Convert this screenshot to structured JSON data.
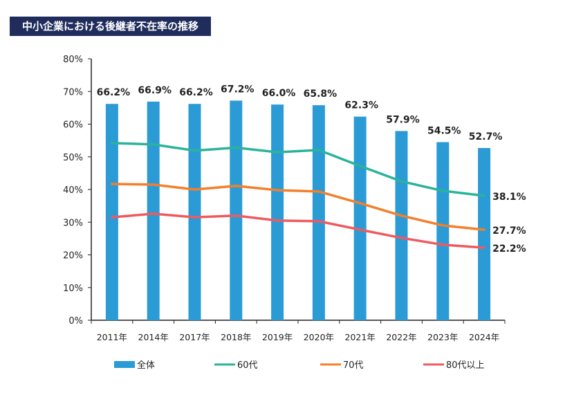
{
  "title": "中小企業における後継者不在率の推移",
  "chart_data": {
    "type": "bar",
    "title": "中小企業における後継者不在率の推移",
    "categories": [
      "2011年",
      "2014年",
      "2017年",
      "2018年",
      "2019年",
      "2020年",
      "2021年",
      "2022年",
      "2023年",
      "2024年"
    ],
    "ylim": [
      0,
      80
    ],
    "yticks": [
      "0%",
      "10%",
      "20%",
      "30%",
      "40%",
      "50%",
      "60%",
      "70%",
      "80%"
    ],
    "grid": false,
    "legend_position": "bottom",
    "series": [
      {
        "name": "全体",
        "kind": "bar",
        "color": "#2b9bd6",
        "values": [
          66.2,
          66.9,
          66.2,
          67.2,
          66.0,
          65.8,
          62.3,
          57.9,
          54.5,
          52.7
        ],
        "labels": [
          "66.2%",
          "66.9%",
          "66.2%",
          "67.2%",
          "66.0%",
          "65.8%",
          "62.3%",
          "57.9%",
          "54.5%",
          "52.7%"
        ]
      },
      {
        "name": "60代",
        "kind": "line",
        "color": "#2bb39a",
        "values": [
          54.2,
          53.8,
          51.9,
          52.8,
          51.4,
          52.1,
          47.2,
          42.5,
          39.6,
          38.1
        ],
        "end_label": "38.1%"
      },
      {
        "name": "70代",
        "kind": "line",
        "color": "#f47f2a",
        "values": [
          41.7,
          41.5,
          40.0,
          41.1,
          39.8,
          39.4,
          35.8,
          32.0,
          29.0,
          27.7
        ],
        "end_label": "27.7%"
      },
      {
        "name": "80代以上",
        "kind": "line",
        "color": "#ef5a5e",
        "values": [
          31.5,
          32.6,
          31.5,
          32.0,
          30.5,
          30.3,
          27.7,
          25.2,
          23.1,
          22.2
        ],
        "end_label": "22.2%"
      }
    ]
  }
}
